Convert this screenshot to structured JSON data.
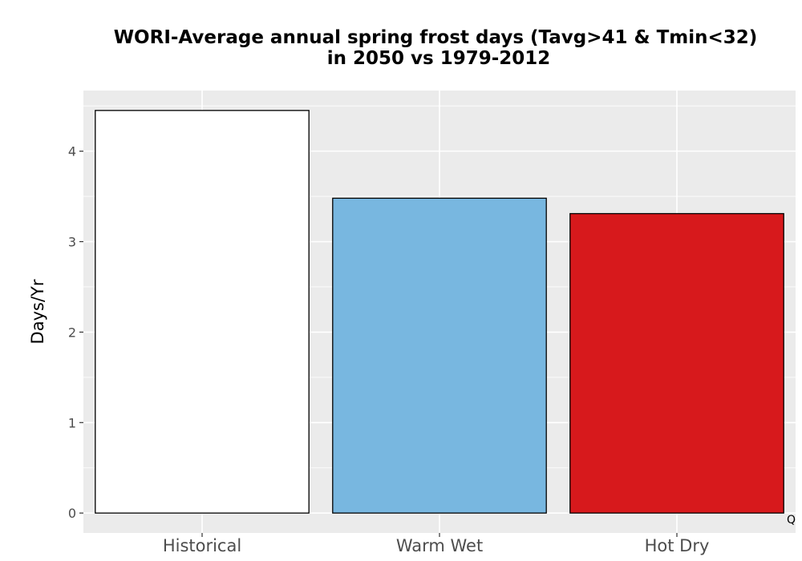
{
  "chart_data": {
    "type": "bar",
    "title_line1": "WORI-Average annual spring frost days (Tavg>41 & Tmin<32)",
    "title_line2": "in 2050 vs 1979-2012",
    "xlabel": "",
    "ylabel": "Days/Yr",
    "categories": [
      "Historical",
      "Warm Wet",
      "Hot Dry"
    ],
    "values": [
      4.45,
      3.48,
      3.31
    ],
    "colors": [
      "#ffffff",
      "#78b7e0",
      "#d7191c"
    ],
    "bar_outline": "#000000",
    "ylim": [
      -0.22,
      4.67
    ],
    "yticks": [
      0,
      1,
      2,
      3,
      4
    ],
    "grid": true,
    "panel_background": "#ebebeb",
    "grid_color": "#ffffff",
    "legend": "none"
  },
  "corner_mark": "Q"
}
